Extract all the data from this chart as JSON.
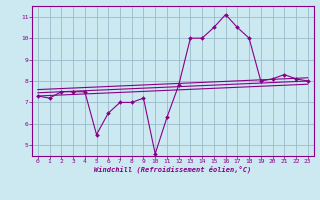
{
  "bg_color": "#cce8f0",
  "plot_bg_color": "#cce8f0",
  "line_color": "#880088",
  "grid_color": "#99bbcc",
  "border_color": "#880088",
  "xlabel": "Windchill (Refroidissement éolien,°C)",
  "xlabel_color": "#880088",
  "tick_color": "#880088",
  "xmin": -0.5,
  "xmax": 23.5,
  "ymin": 4.5,
  "ymax": 11.5,
  "yticks": [
    5,
    6,
    7,
    8,
    9,
    10,
    11
  ],
  "xticks": [
    0,
    1,
    2,
    3,
    4,
    5,
    6,
    7,
    8,
    9,
    10,
    11,
    12,
    13,
    14,
    15,
    16,
    17,
    18,
    19,
    20,
    21,
    22,
    23
  ],
  "main_x": [
    0,
    1,
    2,
    3,
    4,
    5,
    6,
    7,
    8,
    9,
    10,
    11,
    12,
    13,
    14,
    15,
    16,
    17,
    18,
    19,
    20,
    21,
    22,
    23
  ],
  "main_y": [
    7.3,
    7.2,
    7.5,
    7.5,
    7.5,
    5.5,
    6.5,
    7.0,
    7.0,
    7.2,
    4.6,
    6.3,
    7.8,
    10.0,
    10.0,
    10.5,
    11.1,
    10.5,
    10.0,
    8.0,
    8.1,
    8.3,
    8.1,
    8.0
  ],
  "trend_lines": [
    {
      "x0": 0,
      "y0": 7.3,
      "x1": 23,
      "y1": 7.85
    },
    {
      "x0": 0,
      "y0": 7.45,
      "x1": 23,
      "y1": 8.0
    },
    {
      "x0": 0,
      "y0": 7.6,
      "x1": 23,
      "y1": 8.15
    }
  ]
}
